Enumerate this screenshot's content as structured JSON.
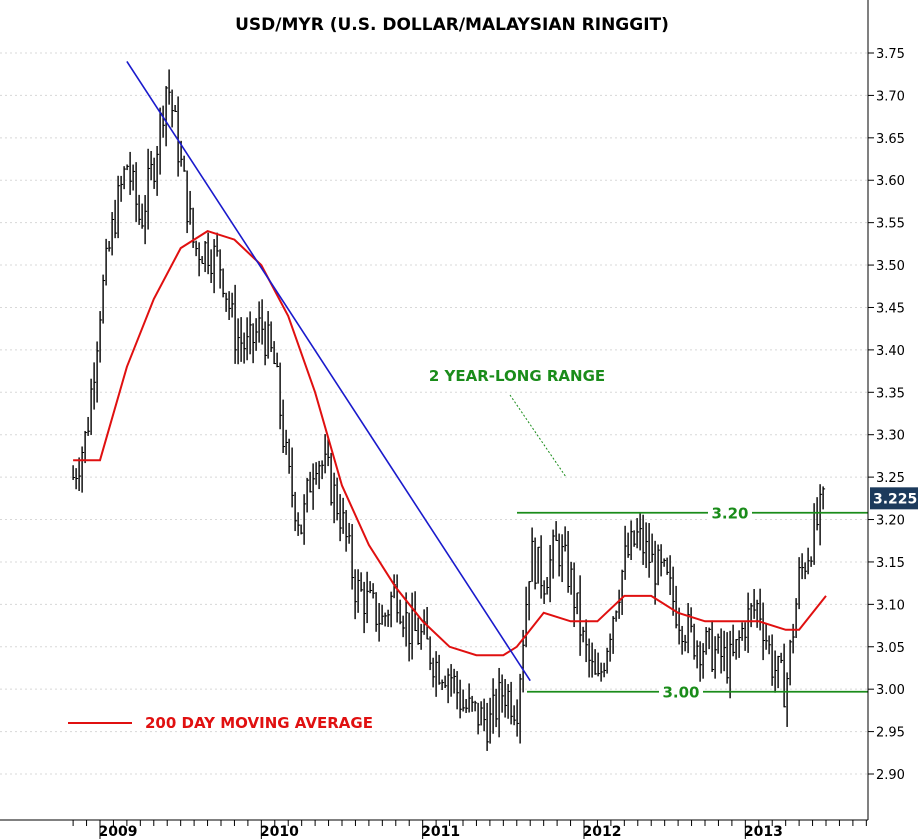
{
  "chart_data": {
    "type": "line",
    "title": "USD/MYR (U.S. DOLLAR/MALAYSIAN RINGGIT)",
    "ylim": [
      2.86,
      3.79
    ],
    "y_ticks": [
      "3.75",
      "3.70",
      "3.65",
      "3.60",
      "3.55",
      "3.50",
      "3.45",
      "3.40",
      "3.35",
      "3.30",
      "3.25",
      "3.20",
      "3.15",
      "3.10",
      "3.05",
      "3.00",
      "2.95",
      "2.90"
    ],
    "x_ticks": [
      "2009",
      "2010",
      "2011",
      "2012",
      "2013"
    ],
    "last_value_label": "3.225",
    "price_series": {
      "style": "bar (high-low)",
      "x": [
        "2008-11",
        "2008-12",
        "2009-01",
        "2009-02",
        "2009-03",
        "2009-04",
        "2009-05",
        "2009-06",
        "2009-07",
        "2009-08",
        "2009-09",
        "2009-10",
        "2009-11",
        "2009-12",
        "2010-01",
        "2010-02",
        "2010-03",
        "2010-04",
        "2010-05",
        "2010-06",
        "2010-07",
        "2010-08",
        "2010-09",
        "2010-10",
        "2010-11",
        "2010-12",
        "2011-01",
        "2011-02",
        "2011-03",
        "2011-04",
        "2011-05",
        "2011-06",
        "2011-07",
        "2011-08",
        "2011-09",
        "2011-10",
        "2011-11",
        "2011-12",
        "2012-01",
        "2012-02",
        "2012-03",
        "2012-04",
        "2012-05",
        "2012-06",
        "2012-07",
        "2012-08",
        "2012-09",
        "2012-10",
        "2012-11",
        "2012-12",
        "2013-01",
        "2013-02",
        "2013-03",
        "2013-04",
        "2013-05",
        "2013-06",
        "2013-07"
      ],
      "y": [
        3.25,
        3.3,
        3.45,
        3.55,
        3.62,
        3.55,
        3.62,
        3.72,
        3.62,
        3.52,
        3.52,
        3.5,
        3.42,
        3.4,
        3.43,
        3.38,
        3.25,
        3.19,
        3.28,
        3.25,
        3.2,
        3.12,
        3.1,
        3.08,
        3.12,
        3.07,
        3.06,
        3.03,
        3.02,
        2.98,
        2.97,
        2.96,
        3.0,
        2.98,
        3.16,
        3.13,
        3.17,
        3.13,
        3.05,
        3.0,
        3.08,
        3.15,
        3.18,
        3.15,
        3.13,
        3.09,
        3.06,
        3.05,
        3.04,
        3.03,
        3.08,
        3.1,
        3.03,
        3.0,
        3.13,
        3.18,
        3.225
      ]
    },
    "moving_average": {
      "name": "200 DAY MOVING AVERAGE",
      "x": [
        "2008-11",
        "2009-01",
        "2009-03",
        "2009-05",
        "2009-07",
        "2009-09",
        "2009-11",
        "2010-01",
        "2010-03",
        "2010-05",
        "2010-07",
        "2010-09",
        "2010-11",
        "2011-01",
        "2011-03",
        "2011-05",
        "2011-07",
        "2011-08",
        "2011-10",
        "2011-12",
        "2012-02",
        "2012-04",
        "2012-06",
        "2012-08",
        "2012-10",
        "2012-12",
        "2013-02",
        "2013-04",
        "2013-05",
        "2013-07"
      ],
      "y": [
        3.27,
        3.27,
        3.38,
        3.46,
        3.52,
        3.54,
        3.53,
        3.5,
        3.44,
        3.35,
        3.24,
        3.17,
        3.12,
        3.08,
        3.05,
        3.04,
        3.04,
        3.05,
        3.09,
        3.08,
        3.08,
        3.11,
        3.11,
        3.09,
        3.08,
        3.08,
        3.08,
        3.07,
        3.07,
        3.11
      ]
    },
    "annotations": {
      "range_title": "2 YEAR-LONG RANGE",
      "resistance": {
        "label": "3.20",
        "value": 3.208
      },
      "support": {
        "label": "3.00",
        "value": 2.997
      },
      "downtrend": {
        "from": [
          "2009-03",
          3.74
        ],
        "to": [
          "2011-09",
          3.01
        ]
      }
    },
    "colors": {
      "price": "#000000",
      "moving_average": "#e01010",
      "trendline": "#1a1acc",
      "range_lines": "#1a8c1a",
      "last_value_box": "#1c3a5c"
    }
  }
}
